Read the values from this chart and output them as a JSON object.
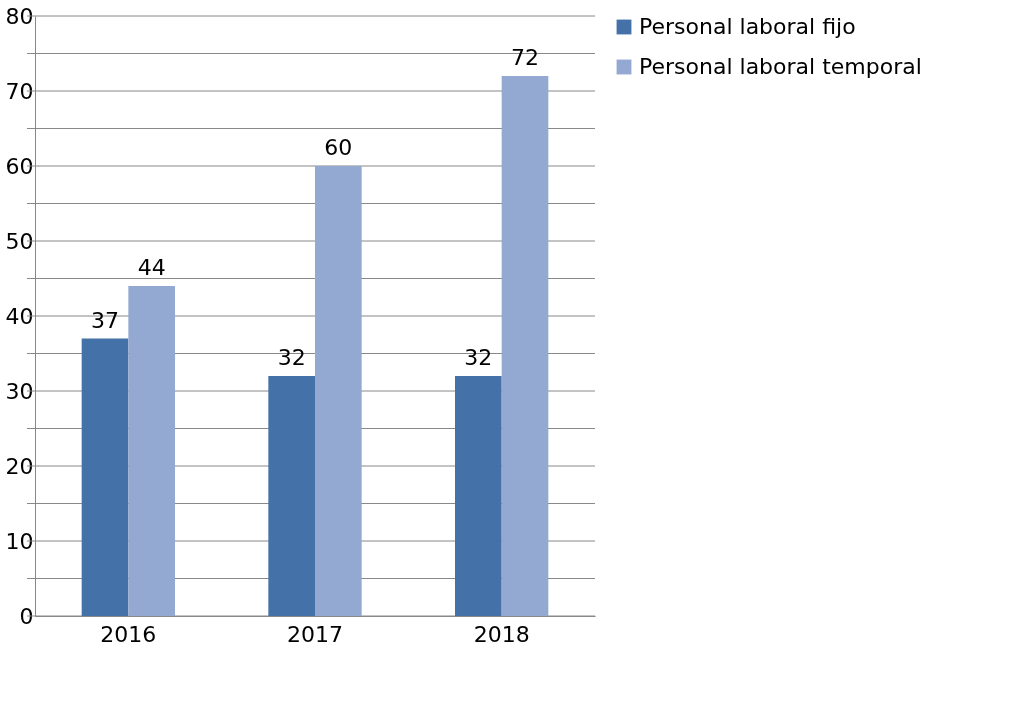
{
  "chart_data": {
    "type": "bar",
    "categories": [
      "2016",
      "2017",
      "2018"
    ],
    "series": [
      {
        "name": "Personal laboral fijo",
        "color": "#4472a8",
        "values": [
          37,
          32,
          32
        ]
      },
      {
        "name": "Personal laboral temporal",
        "color": "#94a9d2",
        "values": [
          44,
          60,
          72
        ]
      }
    ],
    "ylim": [
      0,
      80
    ],
    "yticks": [
      0,
      {
        "value": 5,
        "label": null
      },
      10,
      {
        "value": 15,
        "label": null
      },
      20,
      {
        "value": 25,
        "label": null
      },
      30,
      {
        "value": 35,
        "label": null
      },
      40,
      {
        "value": 45,
        "label": null
      },
      50,
      {
        "value": 55,
        "label": null
      },
      60,
      {
        "value": 65,
        "label": null
      },
      70,
      {
        "value": 75,
        "label": null
      },
      80
    ],
    "grid": "y",
    "legend": "right",
    "data_labels": true
  }
}
